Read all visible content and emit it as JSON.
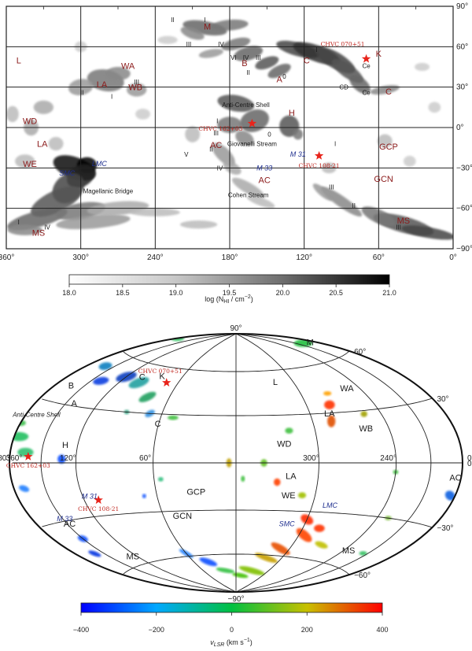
{
  "chart_data": [
    {
      "type": "heatmap",
      "xlim": [
        360,
        0
      ],
      "ylim": [
        -90,
        90
      ],
      "x_ticks": [
        "360°",
        "300°",
        "240°",
        "180°",
        "120°",
        "60°",
        "0°"
      ],
      "y_ticks": [
        "90°",
        "60°",
        "30°",
        "0°",
        "-30°",
        "-60°",
        "-90°"
      ],
      "grid": true,
      "colorbar": {
        "label": "log (N_HI / cm^-2)",
        "label_main": "log (N",
        "label_sub": "HI",
        "label_tail": " / cm",
        "label_sup": "−2",
        "label_end": ")",
        "ticks": [
          "18.0",
          "18.5",
          "19.0",
          "19.5",
          "20.0",
          "20.5",
          "21.0"
        ],
        "range": [
          18.0,
          21.0
        ],
        "colors": [
          "#ffffff",
          "#000000"
        ]
      },
      "regions": [
        {
          "name": "M",
          "l": 198,
          "b": 75
        },
        {
          "name": "B",
          "l": 168,
          "b": 48
        },
        {
          "name": "A",
          "l": 140,
          "b": 36
        },
        {
          "name": "C",
          "l": 118,
          "b": 50
        },
        {
          "name": "K",
          "l": 60,
          "b": 55
        },
        {
          "name": "C",
          "l": 52,
          "b": 27
        },
        {
          "name": "H",
          "l": 130,
          "b": 11
        },
        {
          "name": "L",
          "l": 350,
          "b": 50
        },
        {
          "name": "WA",
          "l": 262,
          "b": 46
        },
        {
          "name": "WB",
          "l": 256,
          "b": 30
        },
        {
          "name": "LA",
          "l": 283,
          "b": 32
        },
        {
          "name": "WD",
          "l": 341,
          "b": 5
        },
        {
          "name": "LA",
          "l": 331,
          "b": -12
        },
        {
          "name": "WE",
          "l": 341,
          "b": -27
        },
        {
          "name": "AC",
          "l": 191,
          "b": -13
        },
        {
          "name": "AC",
          "l": 152,
          "b": -39
        },
        {
          "name": "GCP",
          "l": 52,
          "b": -14
        },
        {
          "name": "GCN",
          "l": 56,
          "b": -38
        },
        {
          "name": "MS",
          "l": 334,
          "b": -78
        },
        {
          "name": "MS",
          "l": 40,
          "b": -69
        }
      ],
      "features": [
        {
          "name": "Anti-Centre Shell",
          "l": 167,
          "b": 17
        },
        {
          "name": "Giovanelli Stream",
          "l": 162,
          "b": -12
        },
        {
          "name": "Magellanic Bridge",
          "l": 278,
          "b": -47
        },
        {
          "name": "Cohen Stream",
          "l": 165,
          "b": -50
        },
        {
          "name": "CD",
          "l": 88,
          "b": 30
        },
        {
          "name": "Ce",
          "l": 70,
          "b": 46
        },
        {
          "name": "Ce",
          "l": 70,
          "b": 26
        }
      ],
      "galaxies": [
        {
          "name": "SMC",
          "l": 311,
          "b": -34
        },
        {
          "name": "LMC",
          "l": 285,
          "b": -27
        },
        {
          "name": "M 33",
          "l": 152,
          "b": -30
        },
        {
          "name": "M 31",
          "l": 125,
          "b": -20
        }
      ],
      "clouds": [
        {
          "name": "CHVC 070+51",
          "l": 70,
          "b": 51
        },
        {
          "name": "CHVC 162+03",
          "l": 162,
          "b": 3
        },
        {
          "name": "CHVC 108-21",
          "l": 108,
          "b": -21
        }
      ],
      "roman_labels": [
        "II",
        "I",
        "III",
        "IV",
        "VI",
        "IV",
        "III",
        "II",
        "I",
        "0",
        "III",
        "I",
        "II",
        "I",
        "III",
        "II",
        "IV",
        "V",
        "0",
        "I",
        "III",
        "II",
        "I",
        "IV",
        "III"
      ]
    },
    {
      "type": "heatmap",
      "projection": "Hammer-Aitoff",
      "lon_ticks": [
        "180°",
        "120°",
        "60°",
        "0°",
        "300°",
        "240°",
        "360°"
      ],
      "lat_ticks": [
        "90°",
        "60°",
        "30°",
        "0°",
        "-30°",
        "-60°",
        "-90°"
      ],
      "grid": true,
      "colorbar": {
        "label": "v_LSR (km s^-1)",
        "label_main": "v",
        "label_sub": "LSR",
        "label_tail": " (km s",
        "label_sup": "−1",
        "label_end": ")",
        "ticks": [
          "-400",
          "-200",
          "0",
          "200",
          "400"
        ],
        "range": [
          -400,
          400
        ],
        "colors": [
          "#0000ff",
          "#00c0ff",
          "#00c000",
          "#c0c000",
          "#ff0000"
        ]
      },
      "regions": [
        "M",
        "C",
        "K",
        "B",
        "A",
        "C",
        "H",
        "L",
        "WA",
        "LA",
        "WB",
        "WD",
        "LA",
        "WE",
        "AC",
        "AC",
        "GCP",
        "GCN",
        "MS",
        "MS"
      ],
      "galaxies": [
        "LMC",
        "SMC",
        "M 31",
        "M 33"
      ],
      "features": [
        "Anti-Centre Shell"
      ],
      "clouds": [
        "CHVC 070+51",
        "CHVC 162+03",
        "CHVC 108-21"
      ]
    }
  ]
}
